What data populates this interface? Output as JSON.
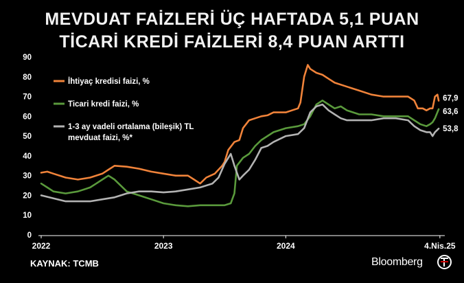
{
  "title_line1": "MEVDUAT FAİZLERİ ÜÇ HAFTADA 5,1 PUAN",
  "title_line2": "TİCARİ KREDİ FAİZLERİ 8,4 PUAN ARTTI",
  "source": "KAYNAK: TCMB",
  "brand": "Bloomberg",
  "chart_data": {
    "type": "line",
    "ylim": [
      0,
      90
    ],
    "y_ticks": [
      "0",
      "10",
      "20",
      "30",
      "40",
      "50",
      "60",
      "70",
      "80",
      "90"
    ],
    "x_ticks": [
      "2022",
      "2023",
      "2024",
      "4.Nis.25"
    ],
    "x_tick_positions": [
      2022.0,
      2023.0,
      2024.0,
      2025.26
    ],
    "xlim": [
      2022.0,
      2025.3
    ],
    "grid": false,
    "legend_position": "top-left",
    "series": [
      {
        "name": "İhtiyaç kredisi faizi, %",
        "color": "#f0833a",
        "end_label": "67,9",
        "points": [
          [
            2022.0,
            31.5
          ],
          [
            2022.05,
            32
          ],
          [
            2022.1,
            31
          ],
          [
            2022.2,
            29
          ],
          [
            2022.3,
            28
          ],
          [
            2022.4,
            29
          ],
          [
            2022.5,
            31
          ],
          [
            2022.55,
            33
          ],
          [
            2022.6,
            35
          ],
          [
            2022.7,
            34.5
          ],
          [
            2022.8,
            33.5
          ],
          [
            2022.9,
            32
          ],
          [
            2023.0,
            31
          ],
          [
            2023.1,
            30
          ],
          [
            2023.2,
            30
          ],
          [
            2023.25,
            28
          ],
          [
            2023.3,
            26
          ],
          [
            2023.35,
            29
          ],
          [
            2023.42,
            31
          ],
          [
            2023.48,
            35
          ],
          [
            2023.5,
            37
          ],
          [
            2023.53,
            43
          ],
          [
            2023.58,
            47
          ],
          [
            2023.62,
            48
          ],
          [
            2023.65,
            54
          ],
          [
            2023.7,
            58
          ],
          [
            2023.75,
            59
          ],
          [
            2023.8,
            60
          ],
          [
            2023.85,
            60.5
          ],
          [
            2023.9,
            62
          ],
          [
            2024.0,
            62
          ],
          [
            2024.05,
            63
          ],
          [
            2024.1,
            64
          ],
          [
            2024.12,
            67
          ],
          [
            2024.15,
            80
          ],
          [
            2024.18,
            86
          ],
          [
            2024.2,
            84
          ],
          [
            2024.25,
            82
          ],
          [
            2024.3,
            81
          ],
          [
            2024.35,
            79
          ],
          [
            2024.4,
            77
          ],
          [
            2024.5,
            75
          ],
          [
            2024.6,
            73
          ],
          [
            2024.7,
            71
          ],
          [
            2024.8,
            70
          ],
          [
            2024.9,
            70
          ],
          [
            2025.0,
            70
          ],
          [
            2025.05,
            68
          ],
          [
            2025.08,
            64
          ],
          [
            2025.12,
            64
          ],
          [
            2025.15,
            63
          ],
          [
            2025.18,
            64
          ],
          [
            2025.2,
            64
          ],
          [
            2025.22,
            70
          ],
          [
            2025.24,
            71
          ],
          [
            2025.25,
            67.9
          ]
        ]
      },
      {
        "name": "Ticari kredi faizi, %",
        "color": "#5a9a3c",
        "end_label": "63,6",
        "points": [
          [
            2022.0,
            26
          ],
          [
            2022.05,
            24
          ],
          [
            2022.1,
            22
          ],
          [
            2022.2,
            21
          ],
          [
            2022.3,
            22
          ],
          [
            2022.4,
            24
          ],
          [
            2022.45,
            26
          ],
          [
            2022.5,
            28
          ],
          [
            2022.55,
            30
          ],
          [
            2022.6,
            28
          ],
          [
            2022.65,
            25
          ],
          [
            2022.7,
            22
          ],
          [
            2022.8,
            20
          ],
          [
            2022.9,
            18
          ],
          [
            2023.0,
            16
          ],
          [
            2023.1,
            15
          ],
          [
            2023.2,
            14.5
          ],
          [
            2023.3,
            15
          ],
          [
            2023.4,
            15
          ],
          [
            2023.5,
            15
          ],
          [
            2023.55,
            16
          ],
          [
            2023.58,
            21
          ],
          [
            2023.6,
            35
          ],
          [
            2023.65,
            39
          ],
          [
            2023.7,
            41
          ],
          [
            2023.75,
            45
          ],
          [
            2023.8,
            48
          ],
          [
            2023.85,
            50
          ],
          [
            2023.9,
            52
          ],
          [
            2024.0,
            54
          ],
          [
            2024.1,
            55
          ],
          [
            2024.15,
            56
          ],
          [
            2024.2,
            60
          ],
          [
            2024.25,
            66
          ],
          [
            2024.3,
            68
          ],
          [
            2024.35,
            66
          ],
          [
            2024.4,
            64
          ],
          [
            2024.45,
            65
          ],
          [
            2024.5,
            63
          ],
          [
            2024.6,
            61
          ],
          [
            2024.7,
            61
          ],
          [
            2024.8,
            60
          ],
          [
            2024.9,
            60
          ],
          [
            2025.0,
            60
          ],
          [
            2025.05,
            58
          ],
          [
            2025.1,
            56
          ],
          [
            2025.15,
            55
          ],
          [
            2025.18,
            56
          ],
          [
            2025.2,
            57
          ],
          [
            2025.22,
            59
          ],
          [
            2025.25,
            63.6
          ]
        ]
      },
      {
        "name": "1-3 ay vadeli ortalama (bileşik) TL mevduat faizi, %*",
        "color": "#b3b3b3",
        "end_label": "53,8",
        "points": [
          [
            2022.0,
            20
          ],
          [
            2022.1,
            18.5
          ],
          [
            2022.2,
            17
          ],
          [
            2022.3,
            17
          ],
          [
            2022.4,
            17
          ],
          [
            2022.5,
            18
          ],
          [
            2022.6,
            19
          ],
          [
            2022.7,
            21
          ],
          [
            2022.8,
            22
          ],
          [
            2022.9,
            22
          ],
          [
            2023.0,
            21.5
          ],
          [
            2023.1,
            22
          ],
          [
            2023.2,
            23
          ],
          [
            2023.3,
            24
          ],
          [
            2023.4,
            26
          ],
          [
            2023.45,
            29
          ],
          [
            2023.5,
            36
          ],
          [
            2023.55,
            41
          ],
          [
            2023.58,
            35
          ],
          [
            2023.62,
            28
          ],
          [
            2023.65,
            30
          ],
          [
            2023.7,
            33
          ],
          [
            2023.75,
            38
          ],
          [
            2023.8,
            44
          ],
          [
            2023.85,
            45
          ],
          [
            2023.9,
            47
          ],
          [
            2024.0,
            50
          ],
          [
            2024.1,
            51
          ],
          [
            2024.15,
            54
          ],
          [
            2024.2,
            62
          ],
          [
            2024.25,
            65
          ],
          [
            2024.3,
            66
          ],
          [
            2024.35,
            63
          ],
          [
            2024.4,
            61
          ],
          [
            2024.45,
            59
          ],
          [
            2024.5,
            58
          ],
          [
            2024.6,
            58
          ],
          [
            2024.7,
            58
          ],
          [
            2024.8,
            59
          ],
          [
            2024.9,
            59
          ],
          [
            2025.0,
            58
          ],
          [
            2025.05,
            55
          ],
          [
            2025.1,
            53
          ],
          [
            2025.15,
            52
          ],
          [
            2025.18,
            52
          ],
          [
            2025.2,
            50
          ],
          [
            2025.22,
            52
          ],
          [
            2025.25,
            53.8
          ]
        ]
      }
    ]
  }
}
